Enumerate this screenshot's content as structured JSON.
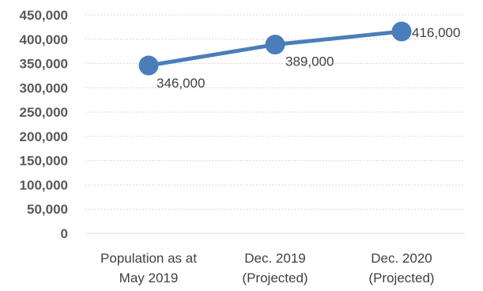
{
  "chart_data": {
    "type": "line",
    "title": "",
    "xlabel": "",
    "ylabel": "",
    "categories": [
      [
        "Population as at",
        "May 2019"
      ],
      [
        "Dec. 2019",
        "(Projected)"
      ],
      [
        "Dec. 2020",
        "(Projected)"
      ]
    ],
    "series": [
      {
        "values": [
          346000,
          389000,
          416000
        ]
      }
    ],
    "data_labels": [
      "346,000",
      "389,000",
      "416,000"
    ],
    "ylim": [
      0,
      450000
    ],
    "yticks": [
      0,
      50000,
      100000,
      150000,
      200000,
      250000,
      300000,
      350000,
      400000,
      450000
    ],
    "ytick_labels": [
      "0",
      "50,000",
      "100,000",
      "150,000",
      "200,000",
      "250,000",
      "300,000",
      "350,000",
      "400,000",
      "450,000"
    ],
    "grid": true,
    "legend": "none",
    "colors": {
      "series": "#4a7ebb",
      "grid": "#d9d9d9"
    }
  }
}
